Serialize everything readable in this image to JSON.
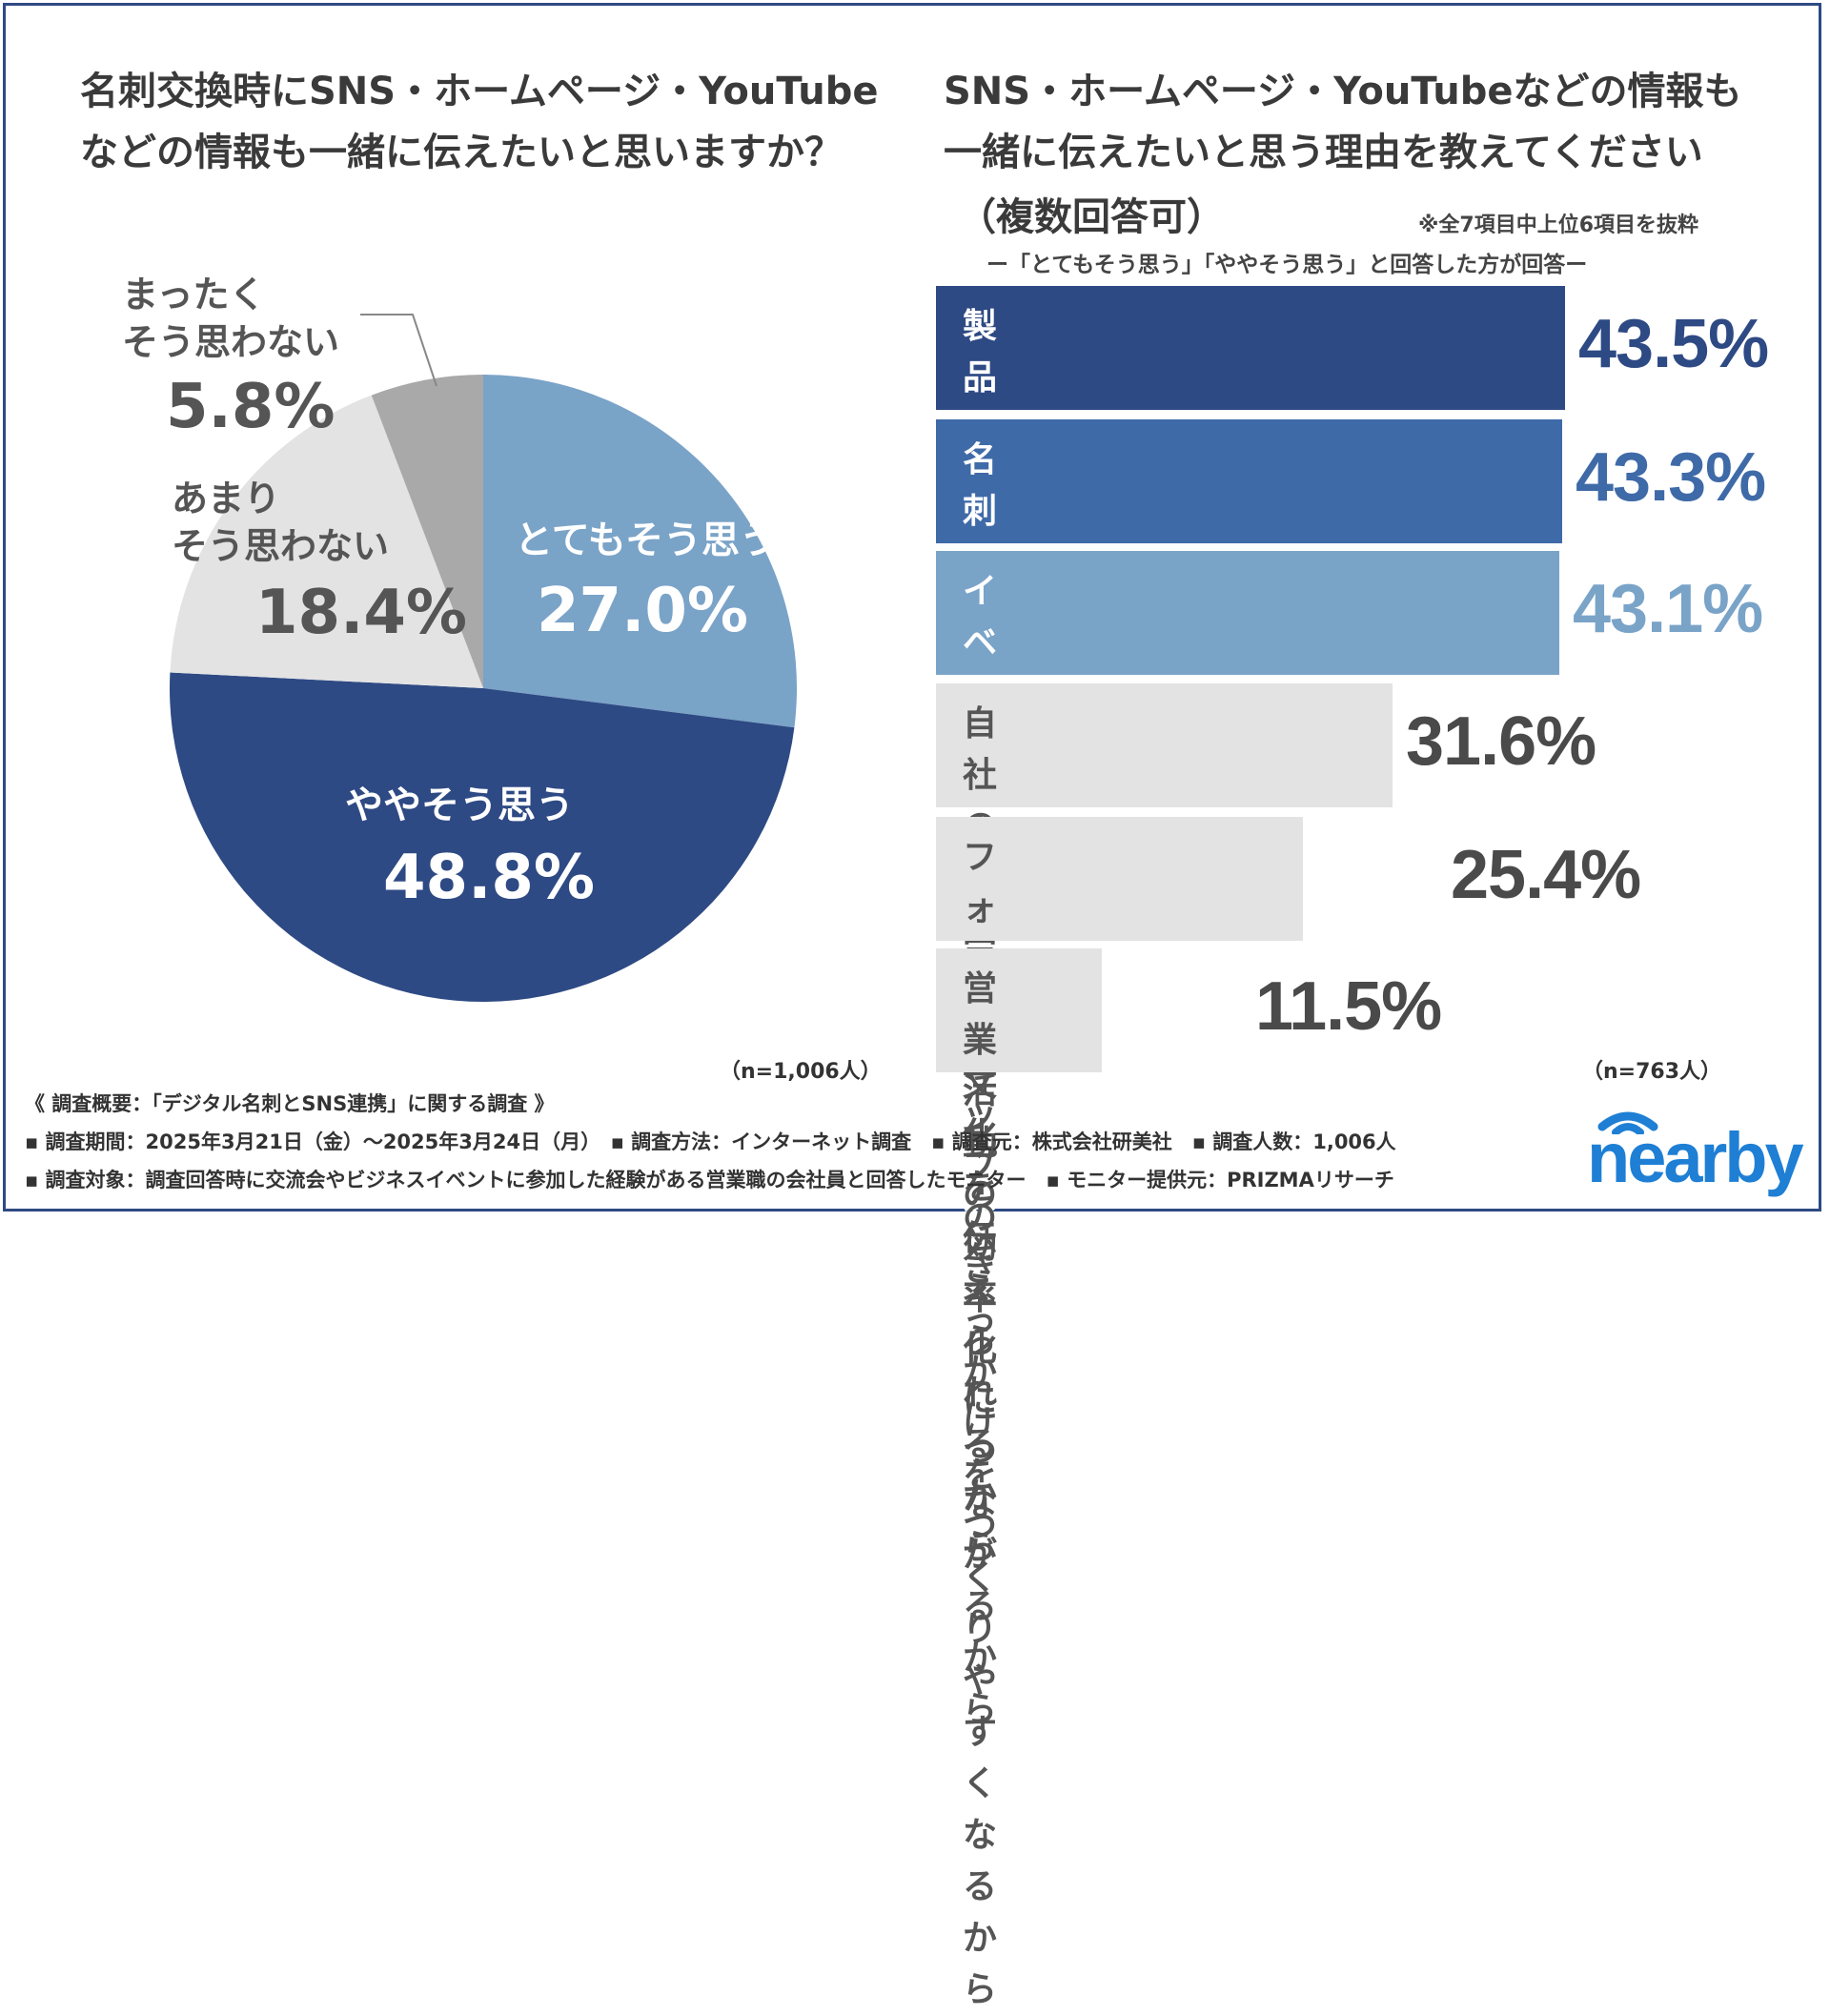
{
  "left": {
    "title_line1": "名刺交換時にSNS・ホームページ・YouTube",
    "title_line2": "などの情報も一緒に伝えたいと思いますか？",
    "n_note": "（n=1,006人）"
  },
  "right": {
    "title_line1": "SNS・ホームページ・YouTubeなどの情報も",
    "title_line2": "一緒に伝えたいと思う理由を教えてください",
    "title_line3": "（複数回答可）",
    "extract_note": "※全7項目中上位6項目を抜粋",
    "respondent_note": "ー「とてもそう思う」「ややそう思う」と回答した方が回答ー",
    "n_note": "（n=763人）"
  },
  "chart_data": [
    {
      "type": "pie",
      "slices": [
        {
          "label": "とてもそう思う",
          "value": 27.0,
          "display": "27.0%",
          "color": "#7aa3c8",
          "text_color": "#ffffff"
        },
        {
          "label": "ややそう思う",
          "value": 48.8,
          "display": "48.8%",
          "color": "#2e4a84",
          "text_color": "#ffffff"
        },
        {
          "label": "あまりそう思わない",
          "value": 18.4,
          "display": "18.4%",
          "color": "#e3e3e3",
          "text_color": "#555555"
        },
        {
          "label": "まったくそう思わない",
          "value": 5.8,
          "display": "5.8%",
          "color": "#a9a9a9",
          "text_color": "#555555"
        }
      ]
    },
    {
      "type": "bar",
      "orientation": "horizontal",
      "categories": [
        "製品やサービスの詳細情報を\n提供できるから",
        "名刺だけでは伝えきれない情報を\n提供できるから",
        "イベントやキャンペーンの\n案内ができるから",
        "自社の雰囲気や文化を\n伝えられるから",
        "フォローアップのきっかけを\nつくりやすくなるから",
        "営業活動の効率化\nにつながるから"
      ],
      "values": [
        43.5,
        43.3,
        43.1,
        31.6,
        25.4,
        11.5
      ],
      "labels": [
        "43.5%",
        "43.3%",
        "43.1%",
        "31.6%",
        "25.4%",
        "11.5%"
      ],
      "bar_colors": [
        "#2e4a84",
        "#3f6aa8",
        "#7aa3c8",
        "#e3e3e3",
        "#e3e3e3",
        "#e3e3e3"
      ],
      "text_colors": [
        "#ffffff",
        "#ffffff",
        "#ffffff",
        "#555555",
        "#555555",
        "#555555"
      ],
      "label_colors": [
        "#2e4a84",
        "#3f6aa8",
        "#7aa3c8",
        "#4a4a4a",
        "#4a4a4a",
        "#4a4a4a"
      ]
    }
  ],
  "footer": {
    "line1": "《 調査概要：「デジタル名刺とSNS連携」に関する調査 》",
    "line2": "▪ 調査期間：2025年3月21日（金）～2025年3月24日（月）　▪ 調査方法：インターネット調査　▪ 調査元：株式会社研美社　▪ 調査人数：1,006人",
    "line3": "▪ 調査対象：調査回答時に交流会やビジネスイベントに参加した経験がある営業職の会社員と回答したモニター　▪ モニター提供元：PRIZMAリサーチ"
  },
  "logo": {
    "text": "nearby",
    "color": "#1e7fd4"
  }
}
